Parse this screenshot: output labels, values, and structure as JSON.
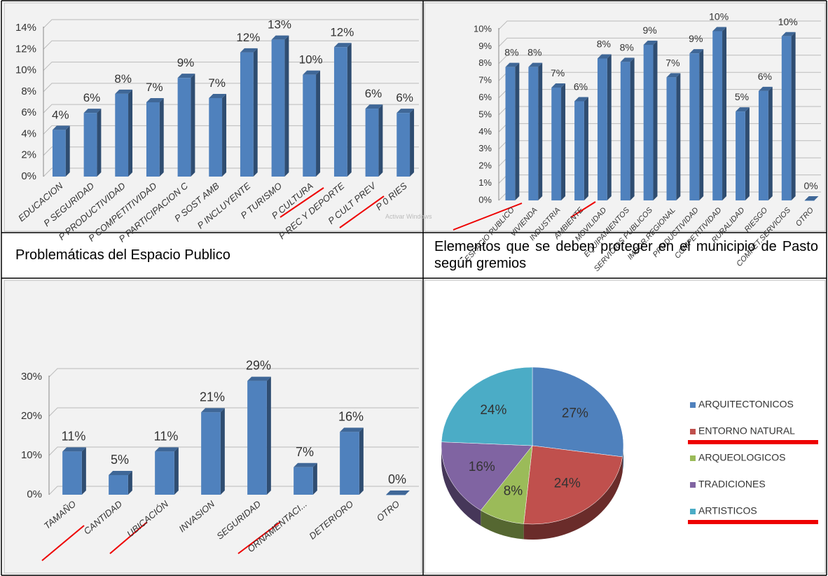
{
  "chart_data": [
    {
      "type": "bar",
      "color": "#4f81bd",
      "categories": [
        "EDUCACION",
        "P SEGURIDAD",
        "P PRODUCTIVIDAD",
        "P COMPETITIVIDAD",
        "P PARTICIPACION C",
        "P SOST AMB",
        "P INCLUYENTE",
        "P TURISMO",
        "P CULTURA",
        "P REC Y DEPORTE",
        "P CULT PREV",
        "P 0 RIES"
      ],
      "values": [
        4.4,
        6.0,
        7.8,
        7.0,
        9.3,
        7.4,
        11.7,
        12.9,
        9.6,
        12.2,
        6.4,
        6.0
      ],
      "value_labels": [
        "4%",
        "6%",
        "8%",
        "7%",
        "9%",
        "7%",
        "12%",
        "13%",
        "10%",
        "12%",
        "6%",
        "6%"
      ],
      "ylim": [
        0,
        14
      ],
      "yticks": [
        {
          "value": 0,
          "label": "0%"
        },
        {
          "value": 2,
          "label": "2%"
        },
        {
          "value": 4,
          "label": "4%"
        },
        {
          "value": 6,
          "label": "6%"
        },
        {
          "value": 8,
          "label": "8%"
        },
        {
          "value": 10,
          "label": "10%"
        },
        {
          "value": 12,
          "label": "12%"
        },
        {
          "value": 14,
          "label": "14%"
        }
      ],
      "grid": true
    },
    {
      "type": "bar",
      "color": "#4f81bd",
      "categories": [
        "ESPACIO PUBLICO",
        "VIVIENDA",
        "INDUSTRIA",
        "AMBIENTE",
        "MOVILIDAD",
        "EQUIPAMIENTOS",
        "SERVICIOS PUBLICOS",
        "IMPOR.REGIONAL",
        "PRODUCTIVIDAD",
        "COMPETITIVIDAD",
        "RURALIDAD",
        "RIESGO",
        "COMPET.SERVICIOS",
        "OTRO"
      ],
      "values": [
        7.8,
        7.8,
        6.6,
        5.8,
        8.3,
        8.1,
        9.1,
        7.2,
        8.6,
        9.9,
        5.2,
        6.4,
        9.6,
        0
      ],
      "value_labels": [
        "8%",
        "8%",
        "7%",
        "6%",
        "8%",
        "8%",
        "9%",
        "7%",
        "9%",
        "10%",
        "5%",
        "6%",
        "10%",
        "0%"
      ],
      "ylim": [
        0,
        10
      ],
      "yticks": [
        {
          "value": 0,
          "label": "0%"
        },
        {
          "value": 1,
          "label": "1%"
        },
        {
          "value": 2,
          "label": "2%"
        },
        {
          "value": 3,
          "label": "3%"
        },
        {
          "value": 4,
          "label": "4%"
        },
        {
          "value": 5,
          "label": "5%"
        },
        {
          "value": 6,
          "label": "6%"
        },
        {
          "value": 7,
          "label": "7%"
        },
        {
          "value": 8,
          "label": "8%"
        },
        {
          "value": 9,
          "label": "9%"
        },
        {
          "value": 10,
          "label": "10%"
        }
      ],
      "grid": true
    },
    {
      "type": "bar",
      "color": "#4f81bd",
      "categories": [
        "TAMAÑO",
        "CANTIDAD",
        "UBICACIÓN",
        "INVASION",
        "SEGURIDAD",
        "ORNAMENTACI...",
        "DETERIORO",
        "OTRO"
      ],
      "values": [
        11,
        5,
        11,
        21,
        29,
        7,
        16,
        0
      ],
      "value_labels": [
        "11%",
        "5%",
        "11%",
        "21%",
        "29%",
        "7%",
        "16%",
        "0%"
      ],
      "ylim": [
        0,
        30
      ],
      "yticks": [
        {
          "value": 0,
          "label": "0%"
        },
        {
          "value": 10,
          "label": "10%"
        },
        {
          "value": 20,
          "label": "20%"
        },
        {
          "value": 30,
          "label": "30%"
        }
      ],
      "grid": true
    },
    {
      "type": "pie",
      "categories": [
        "ARQUITECTONICOS",
        "ENTORNO NATURAL",
        "ARQUEOLOGICOS",
        "TRADICIONES",
        "ARTISTICOS"
      ],
      "values": [
        27,
        24,
        8,
        16,
        24
      ],
      "value_labels": [
        "27%",
        "24%",
        "8%",
        "16%",
        "24%"
      ],
      "colors": [
        "#4f81bd",
        "#c0504d",
        "#9bbb59",
        "#8064a2",
        "#4bacc6"
      ],
      "legend": "right"
    }
  ],
  "captions": [
    "Problemáticas del Espacio Publico",
    "Elementos que se deben proteger en el municipio de Pasto según gremios"
  ],
  "watermark": "Activar Windows"
}
